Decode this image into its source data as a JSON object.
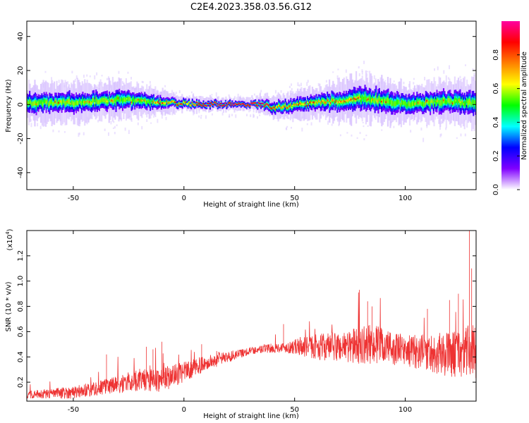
{
  "title": "C2E4.2023.358.03.56.G12",
  "chart_data": [
    {
      "type": "heatmap",
      "xlabel": "Height of straight line (km)",
      "ylabel": "Frequency (Hz)",
      "xlim": [
        -71,
        132
      ],
      "ylim": [
        -50,
        49
      ],
      "xticks": [
        -50,
        0,
        50,
        100
      ],
      "yticks": [
        -40,
        -20,
        0,
        20,
        40
      ],
      "grid": false,
      "colorbar": {
        "label": "Normalized spectral amplitude",
        "range": [
          0,
          1
        ],
        "ticks": [
          "0.0",
          "0.2",
          "0.4",
          "0.6",
          "0.8"
        ],
        "tick_values": [
          0.0,
          0.2,
          0.4,
          0.6,
          0.8
        ],
        "colors": [
          "#ffffff",
          "#8000ff",
          "#0000ff",
          "#00ffff",
          "#00ff00",
          "#ffff00",
          "#ff8000",
          "#ff0000",
          "#ff00a0"
        ]
      },
      "band": {
        "center_hz": [
          {
            "x": -70,
            "y": 1
          },
          {
            "x": -50,
            "y": 1
          },
          {
            "x": -30,
            "y": 3
          },
          {
            "x": -20,
            "y": 2
          },
          {
            "x": 0,
            "y": 0.5
          },
          {
            "x": 20,
            "y": 0
          },
          {
            "x": 37,
            "y": 0
          },
          {
            "x": 40,
            "y": -2
          },
          {
            "x": 60,
            "y": 1
          },
          {
            "x": 75,
            "y": 3
          },
          {
            "x": 80,
            "y": 4
          },
          {
            "x": 90,
            "y": 2
          },
          {
            "x": 100,
            "y": 0
          },
          {
            "x": 115,
            "y": 2
          },
          {
            "x": 132,
            "y": 1
          }
        ],
        "halfwidth_hz": [
          {
            "x": -70,
            "y": 5
          },
          {
            "x": -30,
            "y": 5
          },
          {
            "x": -10,
            "y": 3
          },
          {
            "x": 0,
            "y": 2
          },
          {
            "x": 30,
            "y": 1.5
          },
          {
            "x": 40,
            "y": 3
          },
          {
            "x": 60,
            "y": 4
          },
          {
            "x": 80,
            "y": 6
          },
          {
            "x": 100,
            "y": 5
          },
          {
            "x": 132,
            "y": 6
          }
        ],
        "peak_range_km": [
          -15,
          80
        ]
      }
    },
    {
      "type": "line",
      "xlabel": "Height of straight line (km)",
      "ylabel": "SNR (10 * v/v)",
      "yscale_label": "(x10",
      "yscale_exp": "4",
      "yscale_close": ")",
      "xlim": [
        -71,
        132
      ],
      "ylim": [
        0.05,
        1.4
      ],
      "xticks": [
        -50,
        0,
        50,
        100
      ],
      "yticks": [
        0.2,
        0.4,
        0.6,
        0.8,
        1.0,
        1.2
      ],
      "ytick_labels": [
        "0.2",
        "0.4",
        "0.6",
        "0.8",
        "1.0",
        "1.2"
      ],
      "grid": false,
      "color": "#ee3333",
      "series": [
        {
          "envelope_mean": [
            {
              "x": -71,
              "y": 0.1
            },
            {
              "x": -50,
              "y": 0.12
            },
            {
              "x": -40,
              "y": 0.15
            },
            {
              "x": -30,
              "y": 0.18
            },
            {
              "x": -20,
              "y": 0.22
            },
            {
              "x": -10,
              "y": 0.22
            },
            {
              "x": 0,
              "y": 0.28
            },
            {
              "x": 10,
              "y": 0.35
            },
            {
              "x": 20,
              "y": 0.4
            },
            {
              "x": 30,
              "y": 0.45
            },
            {
              "x": 40,
              "y": 0.47
            },
            {
              "x": 50,
              "y": 0.48
            },
            {
              "x": 70,
              "y": 0.48
            },
            {
              "x": 85,
              "y": 0.5
            },
            {
              "x": 100,
              "y": 0.45
            },
            {
              "x": 120,
              "y": 0.42
            },
            {
              "x": 132,
              "y": 0.45
            }
          ],
          "noise_amplitude": [
            {
              "x": -71,
              "y": 0.03
            },
            {
              "x": -40,
              "y": 0.06
            },
            {
              "x": -10,
              "y": 0.1
            },
            {
              "x": 10,
              "y": 0.06
            },
            {
              "x": 30,
              "y": 0.03
            },
            {
              "x": 45,
              "y": 0.04
            },
            {
              "x": 60,
              "y": 0.1
            },
            {
              "x": 85,
              "y": 0.16
            },
            {
              "x": 100,
              "y": 0.12
            },
            {
              "x": 120,
              "y": 0.18
            },
            {
              "x": 132,
              "y": 0.22
            }
          ],
          "spikes": [
            {
              "x": -35,
              "y": 0.42
            },
            {
              "x": -17,
              "y": 0.48
            },
            {
              "x": -14,
              "y": 0.46
            },
            {
              "x": -10,
              "y": 0.52
            },
            {
              "x": 8,
              "y": 0.5
            },
            {
              "x": 45,
              "y": 0.66
            },
            {
              "x": 83,
              "y": 0.84
            },
            {
              "x": 85,
              "y": 0.8
            },
            {
              "x": 110,
              "y": 0.78
            },
            {
              "x": 120,
              "y": 0.85
            },
            {
              "x": 124,
              "y": 0.9
            },
            {
              "x": 129,
              "y": 1.4
            },
            {
              "x": 130,
              "y": 1.1
            }
          ]
        }
      ]
    }
  ]
}
